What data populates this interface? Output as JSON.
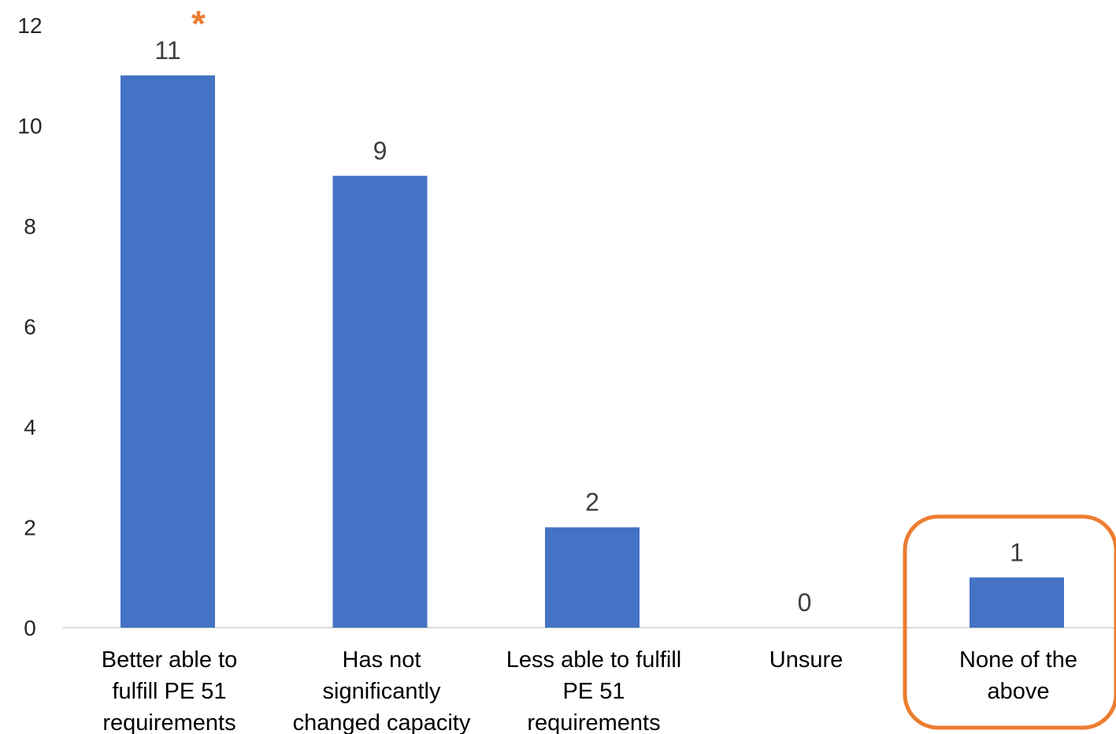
{
  "chart_data": {
    "type": "bar",
    "title": "",
    "xlabel": "",
    "ylabel": "",
    "ylim": [
      0,
      12
    ],
    "yticks": [
      0,
      2,
      4,
      6,
      8,
      10,
      12
    ],
    "grid": false,
    "legend": "none",
    "categories": [
      [
        "Better able to",
        "fulfill PE 51",
        "requirements"
      ],
      [
        "Has not",
        "significantly",
        "changed capacity"
      ],
      [
        "Less able to fulfill",
        "PE 51",
        "requirements"
      ],
      [
        "Unsure"
      ],
      [
        "None of the",
        "above"
      ]
    ],
    "values": [
      11,
      9,
      2,
      0,
      1
    ],
    "data_labels": [
      "11",
      "9",
      "2",
      "0",
      "1"
    ],
    "annotations": {
      "asterisk": {
        "text": "*",
        "category_index": 0
      },
      "highlight_box": {
        "category_index": 4
      }
    }
  },
  "colors": {
    "bar": "#4472C4",
    "axis": "#D9D9D9",
    "highlight": "#ED7D31"
  }
}
